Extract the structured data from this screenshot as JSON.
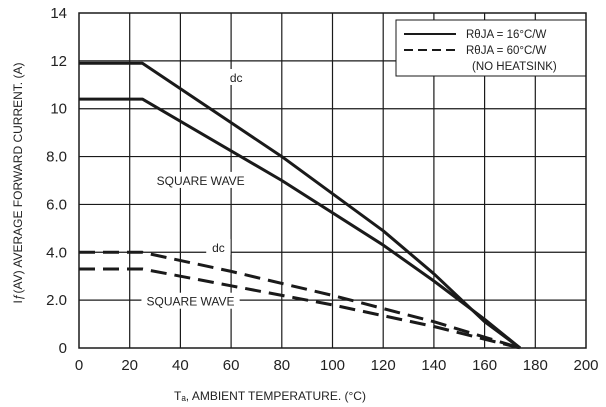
{
  "chart_data": {
    "type": "line",
    "xlabel": "Tₐ, AMBIENT TEMPERATURE. (°C)",
    "ylabel": "Iƒ(AV) AVERAGE FORWARD CURRENT. (A)",
    "xlim": [
      0,
      200
    ],
    "ylim": [
      0,
      14
    ],
    "xticks": [
      "0",
      "20",
      "40",
      "60",
      "80",
      "100",
      "120",
      "140",
      "160",
      "180",
      "200"
    ],
    "yticks": [
      "0",
      "2.0",
      "4.0",
      "6.0",
      "8.0",
      "10",
      "12",
      "14"
    ],
    "grid": true,
    "legend": {
      "placement": "top-right",
      "entries": [
        {
          "label": "RθJA = 16°C/W",
          "style": "solid"
        },
        {
          "label": "RθJA = 60°C/W",
          "style": "dashed"
        },
        {
          "label": "(NO HEATSINK)",
          "style": "none"
        }
      ]
    },
    "series": [
      {
        "style": "solid",
        "points": [
          [
            0,
            11.9
          ],
          [
            25,
            11.9
          ],
          [
            80,
            8.0
          ],
          [
            120,
            4.9
          ],
          [
            140,
            3.1
          ],
          [
            160,
            1.1
          ],
          [
            174,
            0
          ]
        ]
      },
      {
        "style": "solid",
        "points": [
          [
            0,
            10.4
          ],
          [
            25,
            10.4
          ],
          [
            80,
            7.0
          ],
          [
            120,
            4.3
          ],
          [
            140,
            2.8
          ],
          [
            160,
            1.2
          ],
          [
            174,
            0
          ]
        ]
      },
      {
        "style": "dashed",
        "points": [
          [
            0,
            4.0
          ],
          [
            25,
            4.0
          ],
          [
            60,
            3.2
          ],
          [
            100,
            2.2
          ],
          [
            140,
            1.1
          ],
          [
            174,
            0
          ]
        ]
      },
      {
        "style": "dashed",
        "points": [
          [
            0,
            3.3
          ],
          [
            25,
            3.3
          ],
          [
            60,
            2.6
          ],
          [
            100,
            1.8
          ],
          [
            140,
            0.9
          ],
          [
            174,
            0
          ]
        ]
      }
    ],
    "annotations": [
      {
        "text": "dc",
        "x": 62,
        "y": 11.2
      },
      {
        "text": "SQUARE WAVE",
        "x": 48,
        "y": 6.9
      },
      {
        "text": "dc",
        "x": 55,
        "y": 4.1
      },
      {
        "text": "SQUARE WAVE",
        "x": 44,
        "y": 1.85
      }
    ]
  }
}
